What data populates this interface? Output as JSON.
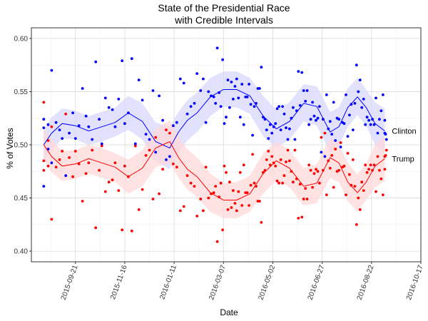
{
  "chart_data": {
    "type": "scatter",
    "title": "State of the Presidential Race",
    "subtitle": "with Credible Intervals",
    "xlabel": "Date",
    "ylabel": "% of Votes",
    "xlim": [
      "2015-08-02",
      "2016-10-17"
    ],
    "ylim": [
      0.39,
      0.61
    ],
    "x_ticks": [
      "2015-09-21",
      "2015-11-16",
      "2016-01-11",
      "2016-03-07",
      "2016-05-02",
      "2016-06-27",
      "2016-08-22",
      "2016-10-17"
    ],
    "y_ticks": [
      0.4,
      0.45,
      0.5,
      0.55,
      0.6
    ],
    "y_tick_labels": [
      "0.40",
      "0.45",
      "0.50",
      "0.55",
      "0.60"
    ],
    "grid": true,
    "legend": "none",
    "series": [
      {
        "name": "Clinton",
        "color": "#0000ff",
        "band_color": "#d8d8ff",
        "trend": {
          "x": [
            "2015-08-16",
            "2015-08-25",
            "2015-09-06",
            "2015-09-21",
            "2015-10-06",
            "2015-10-21",
            "2015-11-05",
            "2015-11-20",
            "2015-12-06",
            "2015-12-21",
            "2016-01-06",
            "2016-01-16",
            "2016-01-26",
            "2016-02-06",
            "2016-02-21",
            "2016-03-07",
            "2016-03-22",
            "2016-04-06",
            "2016-04-21",
            "2016-05-06",
            "2016-05-21",
            "2016-06-06",
            "2016-06-21",
            "2016-07-06",
            "2016-07-16",
            "2016-07-26",
            "2016-08-06",
            "2016-08-16",
            "2016-08-26",
            "2016-09-06"
          ],
          "y": [
            0.5,
            0.511,
            0.52,
            0.518,
            0.513,
            0.517,
            0.521,
            0.53,
            0.522,
            0.503,
            0.497,
            0.512,
            0.523,
            0.53,
            0.545,
            0.552,
            0.552,
            0.546,
            0.527,
            0.515,
            0.522,
            0.539,
            0.536,
            0.512,
            0.517,
            0.535,
            0.545,
            0.535,
            0.52,
            0.513
          ],
          "lower": [
            0.486,
            0.495,
            0.506,
            0.505,
            0.5,
            0.503,
            0.508,
            0.514,
            0.505,
            0.485,
            0.477,
            0.493,
            0.504,
            0.512,
            0.527,
            0.536,
            0.535,
            0.529,
            0.508,
            0.497,
            0.505,
            0.522,
            0.518,
            0.493,
            0.499,
            0.517,
            0.528,
            0.518,
            0.5,
            0.492
          ],
          "upper": [
            0.514,
            0.526,
            0.534,
            0.532,
            0.527,
            0.531,
            0.535,
            0.546,
            0.539,
            0.521,
            0.517,
            0.531,
            0.542,
            0.549,
            0.563,
            0.569,
            0.569,
            0.563,
            0.546,
            0.533,
            0.54,
            0.557,
            0.555,
            0.531,
            0.535,
            0.553,
            0.563,
            0.552,
            0.54,
            0.534
          ]
        }
      },
      {
        "name": "Trump",
        "color": "#ff0000",
        "band_color": "#ffd8d8",
        "trend": {
          "x": [
            "2015-08-16",
            "2015-08-25",
            "2015-09-06",
            "2015-09-21",
            "2015-10-06",
            "2015-10-21",
            "2015-11-05",
            "2015-11-20",
            "2015-12-06",
            "2015-12-21",
            "2016-01-06",
            "2016-01-16",
            "2016-01-26",
            "2016-02-06",
            "2016-02-21",
            "2016-03-07",
            "2016-03-22",
            "2016-04-06",
            "2016-04-21",
            "2016-05-06",
            "2016-05-21",
            "2016-06-06",
            "2016-06-21",
            "2016-07-06",
            "2016-07-16",
            "2016-07-26",
            "2016-08-06",
            "2016-08-16",
            "2016-08-26",
            "2016-09-06"
          ],
          "y": [
            0.5,
            0.489,
            0.48,
            0.482,
            0.487,
            0.483,
            0.479,
            0.47,
            0.478,
            0.497,
            0.503,
            0.488,
            0.477,
            0.47,
            0.455,
            0.448,
            0.448,
            0.454,
            0.473,
            0.485,
            0.478,
            0.461,
            0.464,
            0.488,
            0.483,
            0.465,
            0.455,
            0.465,
            0.48,
            0.487
          ],
          "lower": [
            0.486,
            0.474,
            0.466,
            0.468,
            0.473,
            0.469,
            0.465,
            0.454,
            0.461,
            0.479,
            0.483,
            0.469,
            0.458,
            0.451,
            0.437,
            0.431,
            0.431,
            0.437,
            0.454,
            0.467,
            0.46,
            0.443,
            0.445,
            0.469,
            0.465,
            0.447,
            0.437,
            0.448,
            0.46,
            0.466
          ],
          "upper": [
            0.514,
            0.505,
            0.494,
            0.495,
            0.5,
            0.497,
            0.492,
            0.486,
            0.495,
            0.515,
            0.523,
            0.507,
            0.496,
            0.488,
            0.473,
            0.464,
            0.465,
            0.471,
            0.492,
            0.503,
            0.495,
            0.478,
            0.482,
            0.507,
            0.501,
            0.483,
            0.472,
            0.482,
            0.5,
            0.508
          ]
        }
      }
    ],
    "polls": {
      "x": [
        "2015-08-16",
        "2015-08-16",
        "2015-08-16",
        "2015-08-21",
        "2015-08-21",
        "2015-08-25",
        "2015-08-25",
        "2015-08-30",
        "2015-09-03",
        "2015-09-06",
        "2015-09-10",
        "2015-09-14",
        "2015-09-18",
        "2015-09-21",
        "2015-09-25",
        "2015-09-29",
        "2015-10-03",
        "2015-10-06",
        "2015-10-10",
        "2015-10-14",
        "2015-10-18",
        "2015-10-21",
        "2015-10-25",
        "2015-10-29",
        "2015-11-02",
        "2015-11-05",
        "2015-11-09",
        "2015-11-13",
        "2015-11-16",
        "2015-11-20",
        "2015-11-24",
        "2015-11-28",
        "2015-12-02",
        "2015-12-06",
        "2015-12-10",
        "2015-12-14",
        "2015-12-18",
        "2015-12-21",
        "2015-12-25",
        "2015-12-29",
        "2016-01-02",
        "2016-01-06",
        "2016-01-10",
        "2016-01-14",
        "2016-01-18",
        "2016-01-22",
        "2016-01-26",
        "2016-01-30",
        "2016-02-03",
        "2016-02-06",
        "2016-02-10",
        "2016-02-13",
        "2016-02-16",
        "2016-02-19",
        "2016-02-22",
        "2016-02-25",
        "2016-02-27",
        "2016-02-29",
        "2016-03-02",
        "2016-03-04",
        "2016-03-06",
        "2016-03-08",
        "2016-03-10",
        "2016-03-12",
        "2016-03-14",
        "2016-03-16",
        "2016-03-18",
        "2016-03-20",
        "2016-03-22",
        "2016-03-24",
        "2016-03-26",
        "2016-03-28",
        "2016-03-30",
        "2016-04-01",
        "2016-04-03",
        "2016-04-05",
        "2016-04-07",
        "2016-04-09",
        "2016-04-11",
        "2016-04-13",
        "2016-04-15",
        "2016-04-17",
        "2016-04-19",
        "2016-04-21",
        "2016-04-23",
        "2016-04-25",
        "2016-04-27",
        "2016-04-29",
        "2016-05-01",
        "2016-05-03",
        "2016-05-05",
        "2016-05-07",
        "2016-05-09",
        "2016-05-11",
        "2016-05-13",
        "2016-05-15",
        "2016-05-17",
        "2016-05-19",
        "2016-05-21",
        "2016-05-23",
        "2016-05-25",
        "2016-05-27",
        "2016-05-29",
        "2016-05-31",
        "2016-06-02",
        "2016-06-04",
        "2016-06-06",
        "2016-06-08",
        "2016-06-10",
        "2016-06-12",
        "2016-06-14",
        "2016-06-16",
        "2016-06-18",
        "2016-06-20",
        "2016-06-22",
        "2016-06-24",
        "2016-06-26",
        "2016-06-28",
        "2016-06-30",
        "2016-07-02",
        "2016-07-04",
        "2016-07-06",
        "2016-07-08",
        "2016-07-10",
        "2016-07-12",
        "2016-07-14",
        "2016-07-16",
        "2016-07-18",
        "2016-07-20",
        "2016-07-22",
        "2016-07-24",
        "2016-07-26",
        "2016-07-28",
        "2016-07-30",
        "2016-08-01",
        "2016-08-03",
        "2016-08-05",
        "2016-08-07",
        "2016-08-09",
        "2016-08-11",
        "2016-08-13",
        "2016-08-15",
        "2016-08-17",
        "2016-08-19",
        "2016-08-21",
        "2016-08-23",
        "2016-08-25",
        "2016-08-27",
        "2016-08-29",
        "2016-08-31",
        "2016-09-02",
        "2016-09-04",
        "2016-09-06",
        "2016-09-06",
        "2016-09-07",
        "2016-09-08"
      ],
      "clinton": [
        0.516,
        0.461,
        0.524,
        0.519,
        0.496,
        0.57,
        0.483,
        0.521,
        0.514,
        0.506,
        0.471,
        0.511,
        0.53,
        0.506,
        0.518,
        0.553,
        0.527,
        0.517,
        0.505,
        0.578,
        0.524,
        0.501,
        0.544,
        0.535,
        0.533,
        0.517,
        0.543,
        0.579,
        0.52,
        0.53,
        0.581,
        0.501,
        0.561,
        0.542,
        0.51,
        0.505,
        0.551,
        0.493,
        0.546,
        0.523,
        0.486,
        0.489,
        0.518,
        0.521,
        0.562,
        0.558,
        0.529,
        0.536,
        0.539,
        0.567,
        0.551,
        0.562,
        0.521,
        0.55,
        0.546,
        0.545,
        0.539,
        0.591,
        0.549,
        0.536,
        0.58,
        0.52,
        0.526,
        0.561,
        0.535,
        0.559,
        0.543,
        0.555,
        0.562,
        0.544,
        0.526,
        0.557,
        0.519,
        0.545,
        0.545,
        0.557,
        0.538,
        0.509,
        0.536,
        0.539,
        0.553,
        0.553,
        0.573,
        0.526,
        0.524,
        0.514,
        0.506,
        0.519,
        0.511,
        0.517,
        0.52,
        0.534,
        0.536,
        0.514,
        0.536,
        0.529,
        0.516,
        0.505,
        0.515,
        0.525,
        0.535,
        0.505,
        0.532,
        0.569,
        0.537,
        0.568,
        0.551,
        0.541,
        0.551,
        0.519,
        0.524,
        0.54,
        0.527,
        0.523,
        0.525,
        0.536,
        0.493,
        0.524,
        0.489,
        0.547,
        0.515,
        0.522,
        0.51,
        0.54,
        0.504,
        0.525,
        0.524,
        0.498,
        0.521,
        0.52,
        0.547,
        0.508,
        0.528,
        0.538,
        0.514,
        0.539,
        0.575,
        0.55,
        0.561,
        0.535,
        0.543,
        0.519,
        0.526,
        0.523,
        0.519,
        0.524,
        0.519,
        0.544,
        0.511,
        0.524,
        0.532,
        0.547,
        0.511,
        0.523,
        0.51,
        0.505
      ],
      "trump": [
        0.485,
        0.54,
        0.476,
        0.48,
        0.504,
        0.43,
        0.517,
        0.479,
        0.486,
        0.494,
        0.529,
        0.488,
        0.47,
        0.494,
        0.482,
        0.447,
        0.473,
        0.483,
        0.495,
        0.422,
        0.476,
        0.499,
        0.456,
        0.465,
        0.467,
        0.483,
        0.457,
        0.42,
        0.48,
        0.47,
        0.419,
        0.499,
        0.439,
        0.458,
        0.49,
        0.495,
        0.449,
        0.507,
        0.454,
        0.477,
        0.514,
        0.511,
        0.482,
        0.479,
        0.438,
        0.442,
        0.471,
        0.464,
        0.461,
        0.433,
        0.449,
        0.438,
        0.479,
        0.45,
        0.454,
        0.455,
        0.461,
        0.409,
        0.451,
        0.464,
        0.42,
        0.48,
        0.474,
        0.439,
        0.465,
        0.441,
        0.457,
        0.445,
        0.438,
        0.456,
        0.474,
        0.443,
        0.481,
        0.455,
        0.455,
        0.443,
        0.462,
        0.491,
        0.464,
        0.461,
        0.447,
        0.447,
        0.427,
        0.474,
        0.476,
        0.486,
        0.494,
        0.481,
        0.489,
        0.483,
        0.48,
        0.466,
        0.464,
        0.486,
        0.464,
        0.471,
        0.484,
        0.495,
        0.485,
        0.475,
        0.465,
        0.495,
        0.468,
        0.431,
        0.463,
        0.432,
        0.449,
        0.459,
        0.449,
        0.481,
        0.476,
        0.46,
        0.473,
        0.477,
        0.475,
        0.464,
        0.507,
        0.476,
        0.511,
        0.453,
        0.485,
        0.478,
        0.49,
        0.46,
        0.496,
        0.475,
        0.476,
        0.502,
        0.479,
        0.48,
        0.453,
        0.492,
        0.472,
        0.462,
        0.486,
        0.461,
        0.425,
        0.45,
        0.439,
        0.465,
        0.457,
        0.481,
        0.474,
        0.477,
        0.481,
        0.476,
        0.481,
        0.456,
        0.489,
        0.476,
        0.468,
        0.453,
        0.489,
        0.477,
        0.49,
        0.495
      ]
    }
  }
}
